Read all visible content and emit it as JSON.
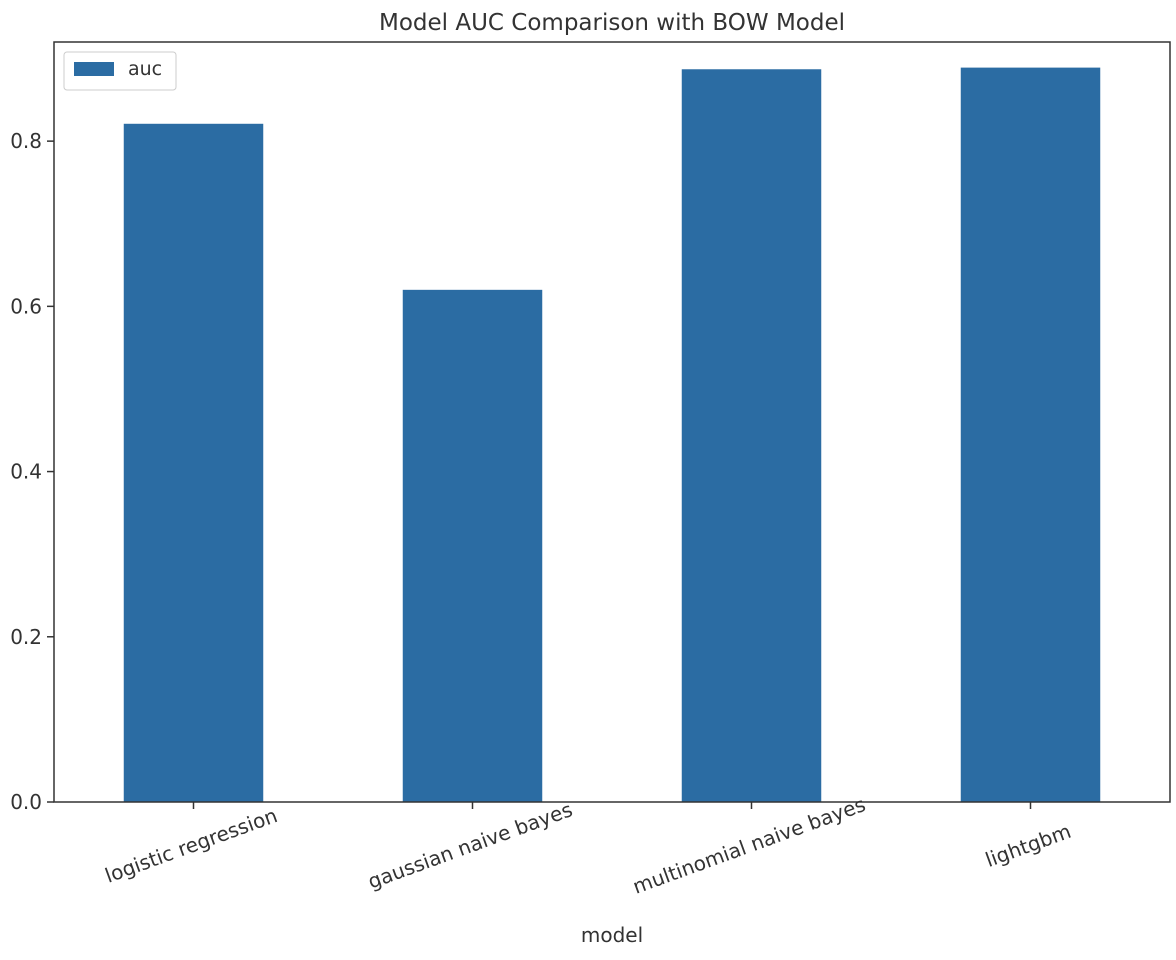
{
  "chart_data": {
    "type": "bar",
    "title": "Model AUC Comparison with BOW Model",
    "xlabel": "model",
    "ylabel": "",
    "categories": [
      "logistic regression",
      "gaussian naive bayes",
      "multinomial naive bayes",
      "lightgbm"
    ],
    "series": [
      {
        "name": "auc",
        "values": [
          0.821,
          0.62,
          0.887,
          0.889
        ],
        "color": "#2b6ca3"
      }
    ],
    "ylim": [
      0,
      0.92
    ],
    "yticks": [
      0.0,
      0.2,
      0.4,
      0.6,
      0.8
    ],
    "ytick_labels": [
      "0.0",
      "0.2",
      "0.4",
      "0.6",
      "0.8"
    ],
    "xtick_rotation": -20,
    "grid": false,
    "legend_position": "top-left"
  }
}
